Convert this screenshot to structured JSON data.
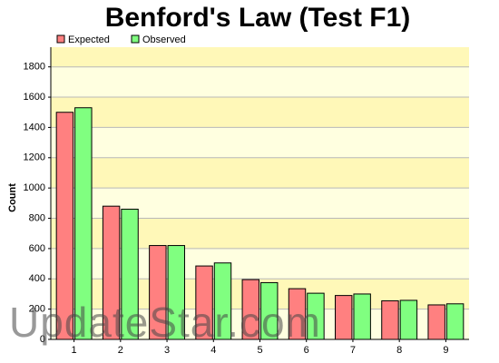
{
  "chart_data": {
    "type": "bar",
    "title": "Benford's Law (Test F1)",
    "y_label": "Count",
    "categories": [
      "1",
      "2",
      "3",
      "4",
      "5",
      "6",
      "7",
      "8",
      "9"
    ],
    "series": [
      {
        "name": "Expected",
        "color": "#ff8080",
        "values": [
          1500,
          880,
          620,
          485,
          395,
          335,
          290,
          255,
          228
        ]
      },
      {
        "name": "Observed",
        "color": "#80ff80",
        "values": [
          1530,
          860,
          620,
          505,
          375,
          305,
          300,
          258,
          235
        ]
      }
    ],
    "ylim": [
      0,
      1930
    ],
    "yticks": [
      0,
      200,
      400,
      600,
      800,
      1000,
      1200,
      1400,
      1600,
      1800
    ],
    "grid": true,
    "watermark": "UpdateStar.com"
  }
}
